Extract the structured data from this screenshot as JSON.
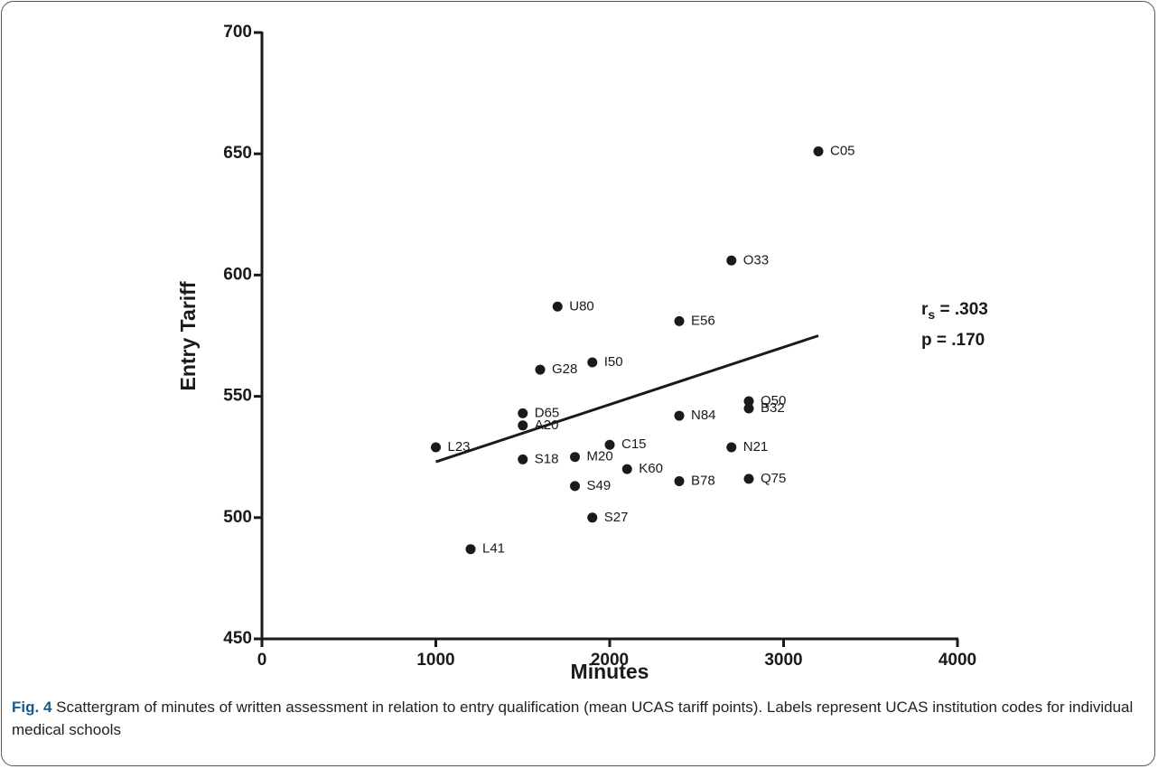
{
  "chart_data": {
    "type": "scatter",
    "x_label": "Minutes",
    "y_label": "Entry Tariff",
    "x": [
      3200,
      2700,
      1700,
      2400,
      1900,
      1600,
      1500,
      1500,
      1000,
      1500,
      1800,
      2000,
      2100,
      1800,
      1900,
      1200,
      2400,
      2400,
      2800,
      2800,
      2700,
      2800
    ],
    "y": [
      651,
      606,
      587,
      581,
      564,
      561,
      543,
      538,
      529,
      524,
      525,
      530,
      520,
      513,
      500,
      487,
      542,
      515,
      548,
      545,
      529,
      516
    ],
    "labels": [
      "C05",
      "O33",
      "U80",
      "E56",
      "I50",
      "G28",
      "D65",
      "A20",
      "L23",
      "S18",
      "M20",
      "C15",
      "K60",
      "S49",
      "S27",
      "L41",
      "N84",
      "B78",
      "Q50",
      "B32",
      "N21",
      "Q75"
    ],
    "color": "#1a1a1a",
    "trendline": {
      "x": [
        1000,
        3200
      ],
      "y": [
        523,
        575
      ]
    },
    "stats": {
      "r_symbol": "r",
      "r_subscript": "s",
      "r_text": " = .303",
      "p_text": "p = .170"
    },
    "xlim": [
      0,
      4000
    ],
    "xticks": [
      0,
      1000,
      2000,
      3000,
      4000
    ],
    "ylim": [
      450,
      700
    ],
    "yticks": [
      450,
      500,
      550,
      600,
      650,
      700
    ]
  },
  "caption": {
    "label": "Fig. 4",
    "text": " Scattergram of minutes of written assessment in relation to entry qualification (mean UCAS tariff points). Labels represent UCAS institution codes for individual medical schools"
  }
}
